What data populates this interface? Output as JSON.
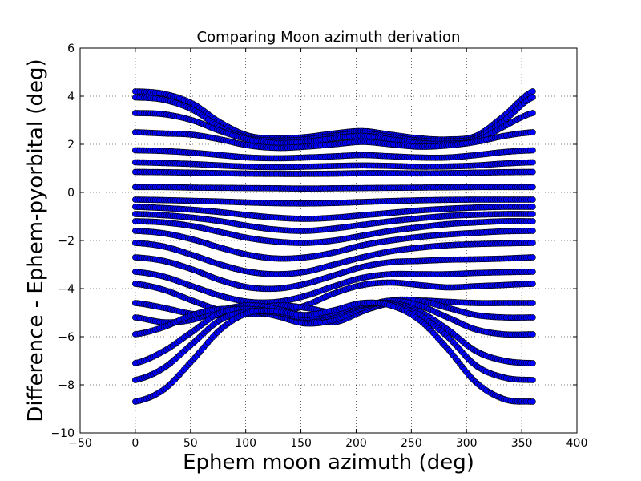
{
  "chart_data": {
    "type": "scatter",
    "title": "Comparing Moon azimuth derivation",
    "xlabel": "Ephem moon azimuth (deg)",
    "ylabel": "Difference - Ephem-pyorbital (deg)",
    "xlim": [
      -50,
      400
    ],
    "ylim": [
      -10,
      6
    ],
    "xticks": [
      -50,
      0,
      50,
      100,
      150,
      200,
      250,
      300,
      350,
      400
    ],
    "yticks": [
      -10,
      -8,
      -6,
      -4,
      -2,
      0,
      2,
      4,
      6
    ],
    "grid": true,
    "marker": "circle",
    "marker_color": "#0000ff",
    "marker_edge_color": "#000000",
    "x_range": [
      0,
      360
    ],
    "x_step": 2,
    "series": [
      {
        "values": [
          4.2,
          4.1,
          3.7,
          2.9,
          2.35,
          2.25,
          2.3,
          2.45,
          2.55,
          2.4,
          2.25,
          2.2,
          2.35,
          3.2,
          4.2
        ]
      },
      {
        "values": [
          3.95,
          3.85,
          3.45,
          2.7,
          2.25,
          2.15,
          2.2,
          2.35,
          2.45,
          2.3,
          2.15,
          2.12,
          2.25,
          3.0,
          3.95
        ]
      },
      {
        "values": [
          3.3,
          3.25,
          3.0,
          2.55,
          2.2,
          2.05,
          2.1,
          2.25,
          2.35,
          2.2,
          2.05,
          2.02,
          2.15,
          2.75,
          3.3
        ]
      },
      {
        "values": [
          2.5,
          2.45,
          2.4,
          2.2,
          1.95,
          1.85,
          1.9,
          2.0,
          2.1,
          2.0,
          1.9,
          1.95,
          2.1,
          2.35,
          2.5
        ]
      },
      {
        "values": [
          1.75,
          1.72,
          1.65,
          1.55,
          1.45,
          1.42,
          1.45,
          1.5,
          1.55,
          1.5,
          1.45,
          1.45,
          1.55,
          1.68,
          1.75
        ]
      },
      {
        "values": [
          1.25,
          1.22,
          1.18,
          1.12,
          1.07,
          1.05,
          1.07,
          1.1,
          1.12,
          1.1,
          1.07,
          1.08,
          1.12,
          1.2,
          1.25
        ]
      },
      {
        "values": [
          0.85,
          0.84,
          0.82,
          0.8,
          0.78,
          0.77,
          0.77,
          0.78,
          0.8,
          0.8,
          0.79,
          0.8,
          0.82,
          0.84,
          0.85
        ]
      },
      {
        "values": [
          0.22,
          0.22,
          0.2,
          0.19,
          0.18,
          0.17,
          0.16,
          0.17,
          0.18,
          0.19,
          0.2,
          0.21,
          0.22,
          0.22,
          0.22
        ]
      },
      {
        "values": [
          -0.3,
          -0.32,
          -0.35,
          -0.38,
          -0.42,
          -0.45,
          -0.46,
          -0.44,
          -0.4,
          -0.36,
          -0.33,
          -0.31,
          -0.3,
          -0.3,
          -0.3
        ]
      },
      {
        "values": [
          -0.6,
          -0.65,
          -0.72,
          -0.82,
          -0.95,
          -1.05,
          -1.1,
          -1.05,
          -0.95,
          -0.85,
          -0.75,
          -0.68,
          -0.63,
          -0.6,
          -0.6
        ]
      },
      {
        "values": [
          -0.9,
          -0.95,
          -1.05,
          -1.2,
          -1.4,
          -1.55,
          -1.6,
          -1.5,
          -1.35,
          -1.2,
          -1.08,
          -0.98,
          -0.93,
          -0.9,
          -0.9
        ]
      },
      {
        "values": [
          -1.2,
          -1.25,
          -1.4,
          -1.65,
          -1.9,
          -2.05,
          -2.1,
          -2.0,
          -1.8,
          -1.6,
          -1.45,
          -1.32,
          -1.25,
          -1.2,
          -1.2
        ]
      },
      {
        "values": [
          -1.6,
          -1.7,
          -1.95,
          -2.3,
          -2.6,
          -2.75,
          -2.7,
          -2.5,
          -2.2,
          -2.0,
          -1.85,
          -1.75,
          -1.68,
          -1.62,
          -1.6
        ]
      },
      {
        "values": [
          -2.1,
          -2.25,
          -2.6,
          -3.0,
          -3.3,
          -3.4,
          -3.3,
          -3.0,
          -2.7,
          -2.45,
          -2.3,
          -2.2,
          -2.15,
          -2.12,
          -2.1
        ]
      },
      {
        "values": [
          -2.7,
          -2.85,
          -3.2,
          -3.65,
          -3.95,
          -4.0,
          -3.8,
          -3.45,
          -3.1,
          -2.9,
          -2.85,
          -2.8,
          -2.78,
          -2.75,
          -2.7
        ]
      },
      {
        "values": [
          -3.3,
          -3.5,
          -3.9,
          -4.3,
          -4.55,
          -4.55,
          -4.3,
          -3.9,
          -3.55,
          -3.4,
          -3.4,
          -3.4,
          -3.35,
          -3.32,
          -3.3
        ]
      },
      {
        "values": [
          -3.8,
          -4.05,
          -4.5,
          -4.9,
          -5.05,
          -5.0,
          -4.7,
          -4.2,
          -3.85,
          -3.75,
          -3.85,
          -3.95,
          -3.9,
          -3.85,
          -3.8
        ]
      },
      {
        "values": [
          -4.6,
          -4.8,
          -5.05,
          -5.1,
          -4.9,
          -4.7,
          -4.8,
          -5.0,
          -4.9,
          -4.6,
          -4.5,
          -4.55,
          -4.6,
          -4.6,
          -4.6
        ]
      },
      {
        "values": [
          -5.2,
          -5.4,
          -5.3,
          -4.9,
          -4.7,
          -4.85,
          -5.2,
          -5.4,
          -4.95,
          -4.5,
          -4.5,
          -4.8,
          -5.1,
          -5.2,
          -5.2
        ]
      },
      {
        "values": [
          -5.9,
          -5.6,
          -5.1,
          -4.85,
          -4.9,
          -5.15,
          -5.45,
          -5.3,
          -4.8,
          -4.5,
          -4.7,
          -5.2,
          -5.7,
          -5.9,
          -5.9
        ]
      },
      {
        "values": [
          -7.1,
          -6.6,
          -5.8,
          -5.0,
          -4.85,
          -5.0,
          -5.25,
          -5.1,
          -4.7,
          -4.6,
          -4.95,
          -5.7,
          -6.6,
          -7.0,
          -7.1
        ]
      },
      {
        "values": [
          -7.8,
          -7.3,
          -6.3,
          -5.3,
          -4.95,
          -5.0,
          -5.2,
          -5.0,
          -4.65,
          -4.65,
          -5.1,
          -6.0,
          -7.2,
          -7.7,
          -7.8
        ]
      },
      {
        "values": [
          -8.7,
          -8.2,
          -7.0,
          -5.7,
          -5.0,
          -4.95,
          -5.1,
          -4.9,
          -4.6,
          -4.7,
          -5.3,
          -6.5,
          -7.9,
          -8.6,
          -8.7
        ]
      }
    ]
  }
}
